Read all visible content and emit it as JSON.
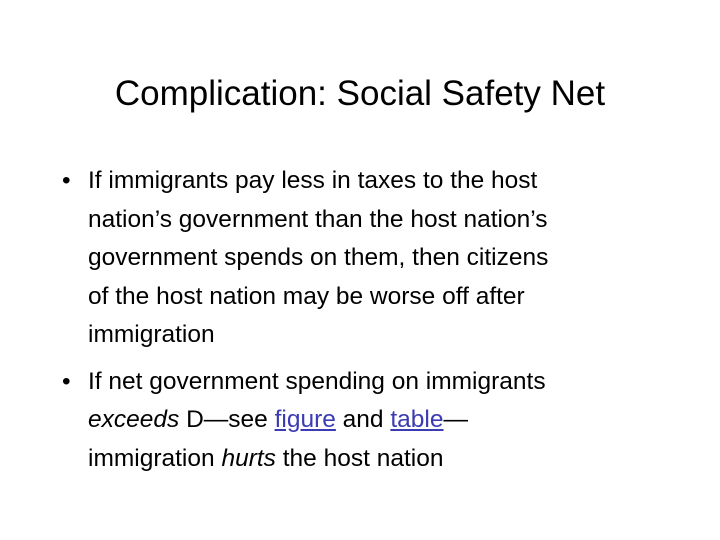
{
  "title": "Complication: Social Safety Net",
  "bullets": [
    {
      "lines": [
        "If immigrants pay less in taxes to the host",
        "nation’s government than the host nation’s",
        "government spends on them, then citizens",
        "of the host nation may be worse off after",
        "immigration"
      ]
    },
    {
      "line1": "If net government spending on immigrants",
      "exceeds": "exceeds",
      "d_see": " D—see ",
      "figure_link": "figure",
      "and": " and ",
      "table_link": "table",
      "dash": "—",
      "immigration": "immigration ",
      "hurts": "hurts",
      "rest": " the host nation"
    }
  ],
  "bullet_glyph": "•",
  "link_color": "#3b3bb3"
}
